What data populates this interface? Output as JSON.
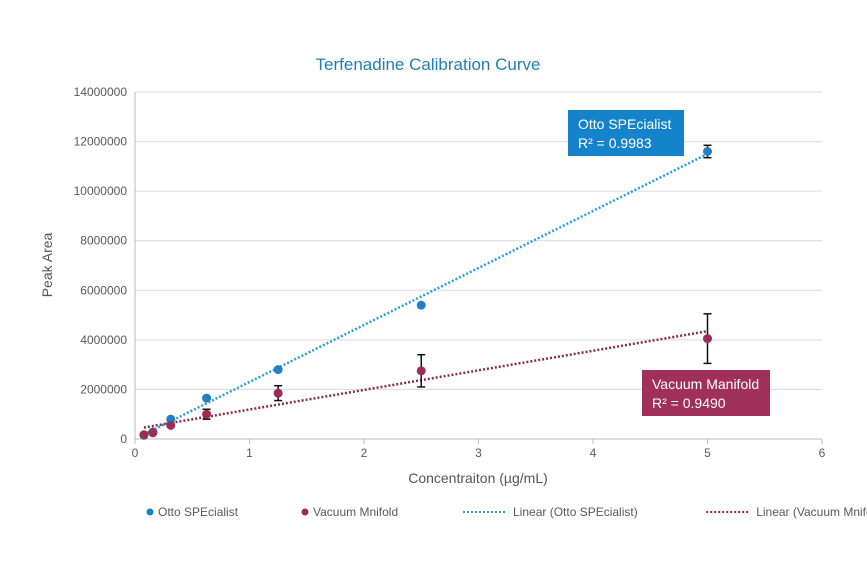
{
  "chart_data": {
    "type": "scatter",
    "title": "Terfenadine Calibration Curve",
    "xlabel": "Concentraiton (µg/mL)",
    "ylabel": "Peak Area",
    "xlim": [
      0,
      6
    ],
    "ylim": [
      0,
      14000000
    ],
    "xticks": [
      0,
      1,
      2,
      3,
      4,
      5,
      6
    ],
    "yticks": [
      0,
      2000000,
      4000000,
      6000000,
      8000000,
      10000000,
      12000000,
      14000000
    ],
    "grid": "horizontal",
    "legend_position": "bottom",
    "series": [
      {
        "name": "Otto SPEcialist",
        "color": "#1f80c4",
        "x": [
          0.078,
          0.156,
          0.3125,
          0.625,
          1.25,
          2.5,
          5
        ],
        "y": [
          150000,
          280000,
          800000,
          1650000,
          2800000,
          5400000,
          11600000
        ],
        "error": [
          0,
          0,
          0,
          0,
          0,
          0,
          250000
        ],
        "trend": {
          "name": "Linear (Otto SPEcialist)",
          "slope": 2300000,
          "intercept": 0,
          "color": "#2a9fd6"
        },
        "annotation": {
          "line1": "Otto SPEcialist",
          "line2": "R² = 0.9983",
          "bg": "#1583cc"
        }
      },
      {
        "name": "Vacuum Mnifold",
        "color": "#9b2d55",
        "x": [
          0.078,
          0.156,
          0.3125,
          0.625,
          1.25,
          2.5,
          5
        ],
        "y": [
          170000,
          250000,
          550000,
          1000000,
          1850000,
          2750000,
          4050000
        ],
        "error": [
          0,
          0,
          0,
          200000,
          300000,
          650000,
          1000000
        ],
        "trend": {
          "name": "Linear (Vacuum Mnifold)",
          "slope": 790000,
          "intercept": 400000,
          "color": "#8a2a4e"
        },
        "annotation": {
          "line1": "Vacuum Manifold",
          "line2": "R² = 0.9490",
          "bg": "#a0305a"
        }
      }
    ]
  }
}
